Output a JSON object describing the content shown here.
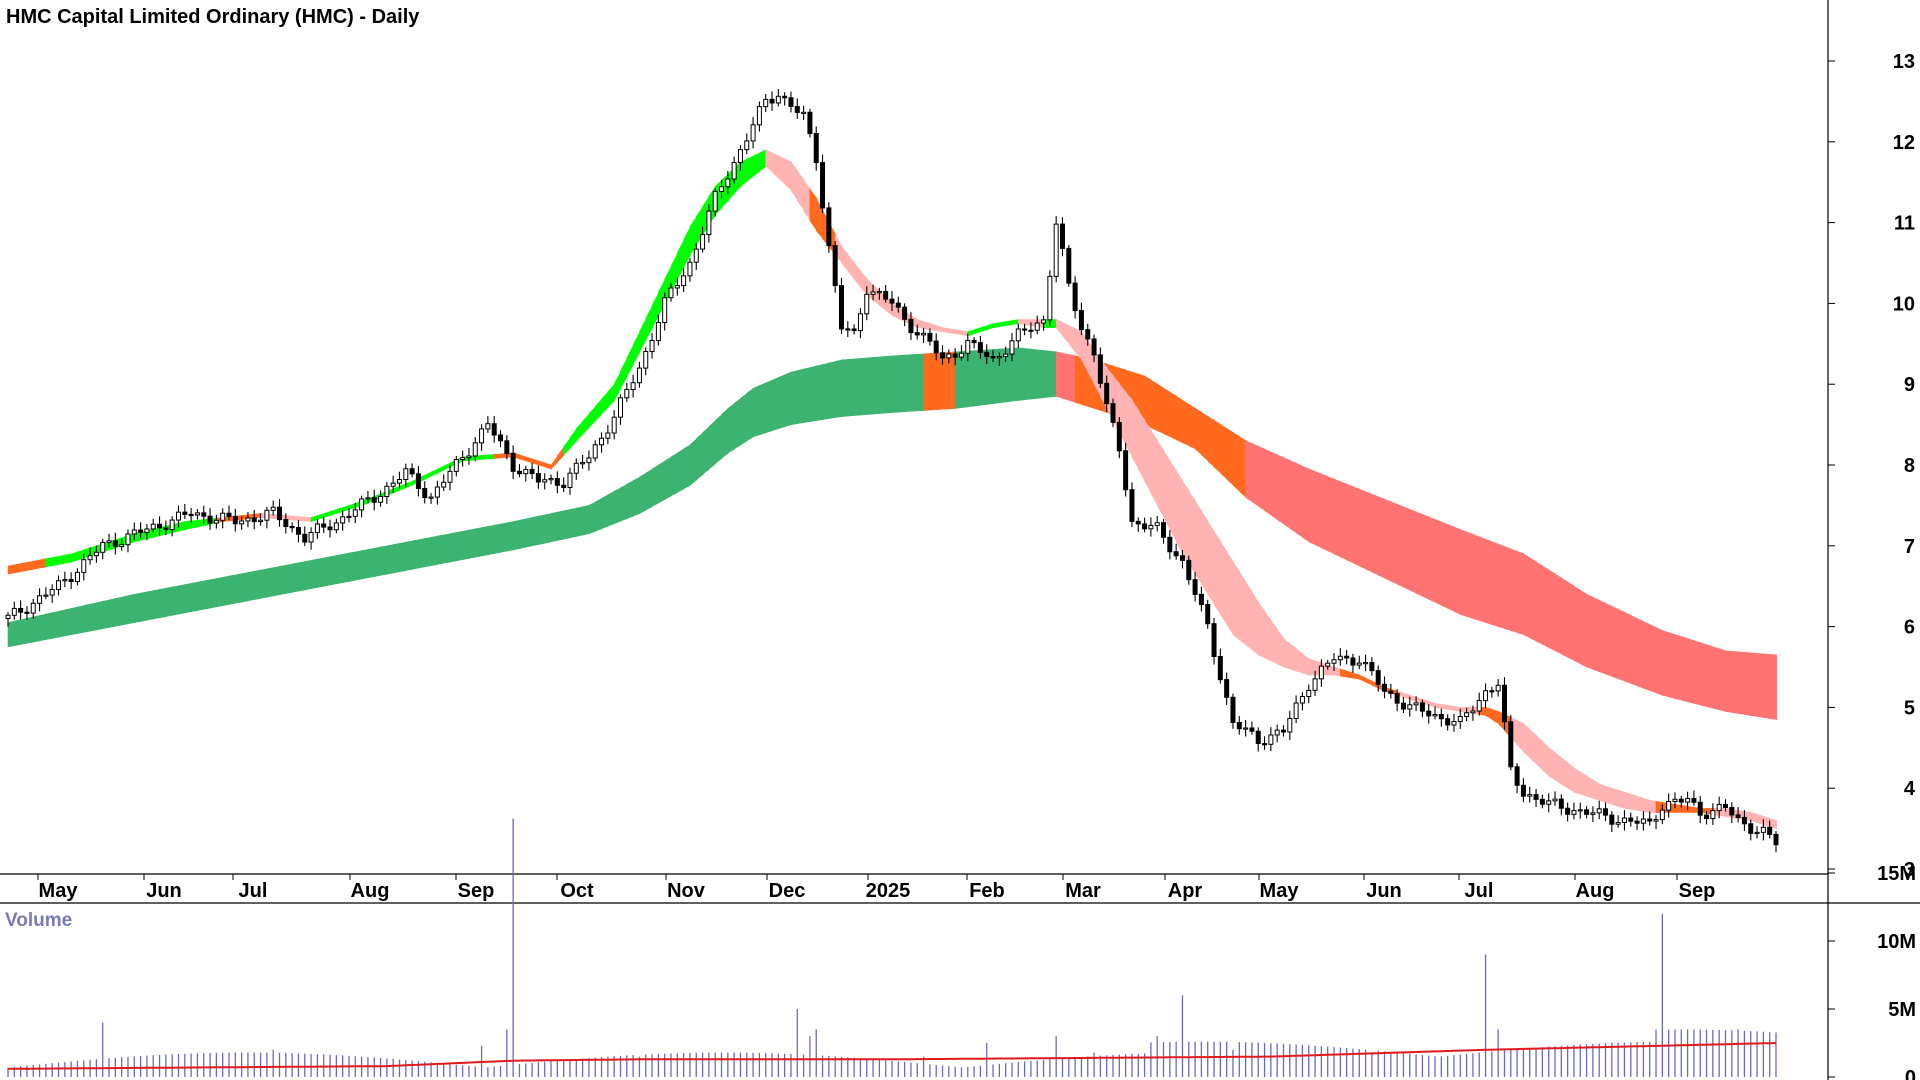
{
  "chart_data": {
    "type": "candlestick",
    "title": "HMC Capital Limited Ordinary (HMC) - Daily",
    "price_axis": {
      "ticks": [
        "3",
        "4",
        "5",
        "6",
        "7",
        "8",
        "9",
        "10",
        "11",
        "12",
        "13"
      ],
      "ylim": [
        2.85,
        13.5
      ]
    },
    "months": [
      "May",
      "Jun",
      "Jul",
      "Aug",
      "Sep",
      "Oct",
      "Nov",
      "Dec",
      "2025",
      "Feb",
      "Mar",
      "Apr",
      "May",
      "Jun",
      "Jul",
      "Aug",
      "Sep"
    ],
    "price_keypoints": [
      [
        0,
        6.1
      ],
      [
        8,
        6.5
      ],
      [
        15,
        7.0
      ],
      [
        22,
        7.2
      ],
      [
        29,
        7.4
      ],
      [
        36,
        7.3
      ],
      [
        42,
        7.4
      ],
      [
        47,
        7.1
      ],
      [
        52,
        7.3
      ],
      [
        58,
        7.6
      ],
      [
        63,
        7.9
      ],
      [
        67,
        7.6
      ],
      [
        72,
        8.1
      ],
      [
        76,
        8.5
      ],
      [
        80,
        8.0
      ],
      [
        84,
        7.8
      ],
      [
        88,
        7.8
      ],
      [
        92,
        8.1
      ],
      [
        96,
        8.6
      ],
      [
        100,
        9.2
      ],
      [
        104,
        10.0
      ],
      [
        108,
        10.5
      ],
      [
        112,
        11.3
      ],
      [
        116,
        11.9
      ],
      [
        120,
        12.5
      ],
      [
        122,
        12.6
      ],
      [
        126,
        12.3
      ],
      [
        128,
        11.8
      ],
      [
        130,
        10.7
      ],
      [
        132,
        9.7
      ],
      [
        134,
        9.6
      ],
      [
        136,
        10.2
      ],
      [
        140,
        10.0
      ],
      [
        142,
        9.8
      ],
      [
        146,
        9.5
      ],
      [
        148,
        9.3
      ],
      [
        152,
        9.5
      ],
      [
        156,
        9.3
      ],
      [
        160,
        9.6
      ],
      [
        164,
        9.8
      ],
      [
        166,
        11.0
      ],
      [
        168,
        10.2
      ],
      [
        170,
        9.7
      ],
      [
        172,
        9.4
      ],
      [
        174,
        8.7
      ],
      [
        176,
        8.2
      ],
      [
        178,
        7.3
      ],
      [
        182,
        7.2
      ],
      [
        186,
        6.8
      ],
      [
        190,
        6.0
      ],
      [
        192,
        5.4
      ],
      [
        194,
        4.8
      ],
      [
        196,
        4.7
      ],
      [
        198,
        4.6
      ],
      [
        202,
        4.7
      ],
      [
        206,
        5.3
      ],
      [
        210,
        5.6
      ],
      [
        214,
        5.6
      ],
      [
        218,
        5.2
      ],
      [
        222,
        5.0
      ],
      [
        226,
        4.9
      ],
      [
        230,
        4.8
      ],
      [
        234,
        5.2
      ],
      [
        236,
        5.3
      ],
      [
        238,
        4.2
      ],
      [
        240,
        3.95
      ],
      [
        244,
        3.8
      ],
      [
        250,
        3.7
      ],
      [
        256,
        3.6
      ],
      [
        260,
        3.55
      ],
      [
        262,
        3.8
      ],
      [
        266,
        3.85
      ],
      [
        268,
        3.7
      ],
      [
        272,
        3.75
      ],
      [
        274,
        3.6
      ],
      [
        278,
        3.45
      ],
      [
        280,
        3.32
      ]
    ],
    "mma_short_band": [
      [
        0,
        6.65,
        6.75
      ],
      [
        10,
        6.8,
        6.9
      ],
      [
        20,
        7.05,
        7.15
      ],
      [
        28,
        7.2,
        7.3
      ],
      [
        34,
        7.3,
        7.35
      ],
      [
        40,
        7.35,
        7.4
      ],
      [
        48,
        7.3,
        7.35
      ],
      [
        56,
        7.5,
        7.55
      ],
      [
        64,
        7.75,
        7.8
      ],
      [
        72,
        8.05,
        8.1
      ],
      [
        80,
        8.1,
        8.15
      ],
      [
        86,
        7.95,
        8.0
      ],
      [
        90,
        8.3,
        8.45
      ],
      [
        96,
        8.8,
        9.0
      ],
      [
        100,
        9.4,
        9.65
      ],
      [
        104,
        10.0,
        10.3
      ],
      [
        108,
        10.6,
        10.95
      ],
      [
        112,
        11.1,
        11.45
      ],
      [
        116,
        11.45,
        11.75
      ],
      [
        120,
        11.7,
        11.9
      ],
      [
        124,
        11.4,
        11.75
      ],
      [
        128,
        10.9,
        11.3
      ],
      [
        132,
        10.5,
        10.7
      ],
      [
        136,
        10.1,
        10.3
      ],
      [
        140,
        9.85,
        10.0
      ],
      [
        144,
        9.7,
        9.8
      ],
      [
        148,
        9.65,
        9.7
      ],
      [
        152,
        9.6,
        9.65
      ],
      [
        156,
        9.7,
        9.75
      ],
      [
        160,
        9.75,
        9.8
      ],
      [
        164,
        9.7,
        9.8
      ],
      [
        166,
        9.7,
        9.8
      ],
      [
        170,
        9.3,
        9.65
      ],
      [
        174,
        8.7,
        9.2
      ],
      [
        178,
        8.1,
        8.8
      ],
      [
        182,
        7.5,
        8.3
      ],
      [
        186,
        6.9,
        7.8
      ],
      [
        190,
        6.4,
        7.3
      ],
      [
        194,
        5.9,
        6.8
      ],
      [
        198,
        5.65,
        6.3
      ],
      [
        202,
        5.5,
        5.85
      ],
      [
        206,
        5.4,
        5.6
      ],
      [
        210,
        5.4,
        5.5
      ],
      [
        214,
        5.35,
        5.4
      ],
      [
        218,
        5.2,
        5.25
      ],
      [
        222,
        5.1,
        5.15
      ],
      [
        226,
        5.0,
        5.05
      ],
      [
        230,
        4.95,
        5.0
      ],
      [
        234,
        4.9,
        5.0
      ],
      [
        236,
        4.8,
        4.95
      ],
      [
        240,
        4.45,
        4.8
      ],
      [
        244,
        4.15,
        4.5
      ],
      [
        248,
        3.95,
        4.25
      ],
      [
        252,
        3.85,
        4.05
      ],
      [
        256,
        3.75,
        3.95
      ],
      [
        260,
        3.7,
        3.85
      ],
      [
        264,
        3.7,
        3.8
      ],
      [
        268,
        3.7,
        3.75
      ],
      [
        272,
        3.65,
        3.75
      ],
      [
        276,
        3.6,
        3.7
      ],
      [
        280,
        3.5,
        3.6
      ]
    ],
    "mma_long_band": [
      [
        0,
        5.75,
        6.05
      ],
      [
        20,
        6.05,
        6.4
      ],
      [
        40,
        6.35,
        6.7
      ],
      [
        60,
        6.65,
        7.0
      ],
      [
        80,
        6.95,
        7.3
      ],
      [
        92,
        7.15,
        7.5
      ],
      [
        100,
        7.4,
        7.85
      ],
      [
        108,
        7.75,
        8.25
      ],
      [
        114,
        8.15,
        8.7
      ],
      [
        118,
        8.35,
        8.95
      ],
      [
        124,
        8.5,
        9.15
      ],
      [
        132,
        8.6,
        9.3
      ],
      [
        140,
        8.65,
        9.35
      ],
      [
        150,
        8.7,
        9.4
      ],
      [
        160,
        8.8,
        9.45
      ],
      [
        166,
        8.85,
        9.4
      ],
      [
        172,
        8.7,
        9.3
      ],
      [
        180,
        8.5,
        9.1
      ],
      [
        188,
        8.2,
        8.7
      ],
      [
        196,
        7.6,
        8.3
      ],
      [
        206,
        7.05,
        7.95
      ],
      [
        214,
        6.75,
        7.7
      ],
      [
        222,
        6.45,
        7.45
      ],
      [
        230,
        6.15,
        7.2
      ],
      [
        240,
        5.9,
        6.9
      ],
      [
        250,
        5.5,
        6.4
      ],
      [
        262,
        5.15,
        5.95
      ],
      [
        272,
        4.95,
        5.7
      ],
      [
        280,
        4.85,
        5.65
      ]
    ],
    "volume_axis": {
      "ticks": [
        "15M",
        "10M",
        "5M",
        "0"
      ],
      "ylim": [
        0,
        20
      ]
    },
    "volume_label": "Volume",
    "volume_spikes": [
      [
        15,
        4.0
      ],
      [
        42,
        2.0
      ],
      [
        75,
        2.3
      ],
      [
        79,
        3.5
      ],
      [
        80,
        19.0
      ],
      [
        100,
        1.5
      ],
      [
        110,
        1.8
      ],
      [
        125,
        5.0
      ],
      [
        127,
        3.0
      ],
      [
        128,
        3.5
      ],
      [
        145,
        1.5
      ],
      [
        155,
        2.5
      ],
      [
        166,
        3.0
      ],
      [
        172,
        1.8
      ],
      [
        182,
        3.0
      ],
      [
        186,
        6.0
      ],
      [
        194,
        2.0
      ],
      [
        216,
        1.8
      ],
      [
        234,
        9.0
      ],
      [
        236,
        3.5
      ],
      [
        262,
        12.0
      ],
      [
        264,
        3.5
      ],
      [
        274,
        3.5
      ]
    ],
    "volume_avg_points": [
      [
        0,
        0.6
      ],
      [
        60,
        0.8
      ],
      [
        80,
        1.2
      ],
      [
        100,
        1.3
      ],
      [
        140,
        1.3
      ],
      [
        200,
        1.5
      ],
      [
        234,
        2.0
      ],
      [
        262,
        2.3
      ],
      [
        280,
        2.5
      ]
    ],
    "colors": {
      "bull_up": "#00ff00",
      "short_down": "#ffb3b3",
      "long_up": "#3cb371",
      "long_down": "#ff7373",
      "crossover": "#ff6a1f",
      "volume_bar": "#6a6ac4",
      "volume_avg": "#e01a1a",
      "candle": "#000000"
    }
  }
}
